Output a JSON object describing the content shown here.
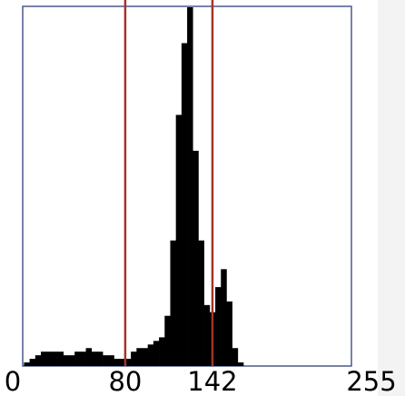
{
  "chart_data": {
    "type": "histogram",
    "bins": [
      0,
      4,
      8,
      12,
      16,
      20,
      24,
      28,
      32,
      36,
      40,
      44,
      48,
      52,
      56,
      60,
      64,
      68,
      72,
      76,
      80,
      84,
      88,
      92,
      96,
      100,
      104,
      108,
      112,
      116,
      120,
      124,
      128,
      132,
      136,
      140,
      144,
      148,
      152,
      156,
      160,
      164,
      168,
      172,
      176,
      180,
      184,
      188,
      192,
      196,
      200,
      204,
      208,
      212,
      216,
      220,
      224,
      228,
      232,
      236,
      240,
      244,
      248,
      252,
      256
    ],
    "values": [
      0,
      0,
      1,
      2,
      3,
      4,
      4,
      4,
      4,
      3,
      3,
      4,
      4,
      5,
      4,
      4,
      3,
      3,
      2,
      2,
      2,
      4,
      5,
      5,
      6,
      7,
      8,
      14,
      35,
      70,
      90,
      100,
      60,
      35,
      17,
      15,
      22,
      27,
      18,
      5,
      1,
      0,
      0,
      0,
      0,
      0,
      0,
      0,
      0,
      0,
      0,
      0,
      0,
      0,
      0,
      0,
      0,
      0,
      0,
      0,
      0,
      0,
      0,
      0
    ],
    "color": "#000000",
    "xlim": [
      0,
      255
    ],
    "xticks": [
      0,
      80,
      142,
      255
    ],
    "thresholds": [
      80,
      142
    ],
    "threshold_color": "#a3342b"
  }
}
